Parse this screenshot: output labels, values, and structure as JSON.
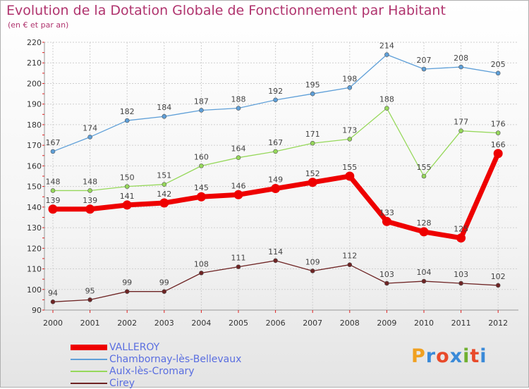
{
  "title": "Evolution de la Dotation Globale de Fonctionnement par Habitant",
  "subtitle": "(en € et par an)",
  "logo": {
    "letters": [
      "P",
      "r",
      "o",
      "x",
      "i",
      "t",
      "i"
    ],
    "colors": [
      "#f0a020",
      "#3a8ad8",
      "#e84a2a",
      "#3a8ad8",
      "#70b030",
      "#e84a2a",
      "#3a8ad8"
    ]
  },
  "chart_data": {
    "type": "line",
    "title": "Evolution de la Dotation Globale de Fonctionnement par Habitant",
    "subtitle": "(en € et par an)",
    "x": [
      "2000",
      "2001",
      "2002",
      "2003",
      "2004",
      "2005",
      "2006",
      "2007",
      "2008",
      "2009",
      "2010",
      "2011",
      "2012"
    ],
    "ylim": [
      90,
      220
    ],
    "yticks": [
      90,
      100,
      110,
      120,
      130,
      140,
      150,
      160,
      170,
      180,
      190,
      200,
      210,
      220
    ],
    "grid": true,
    "legend_position": "bottom-left",
    "series": [
      {
        "name": "VALLEROY",
        "color": "#ee0000",
        "values": [
          139,
          139,
          141,
          142,
          145,
          146,
          149,
          152,
          155,
          133,
          128,
          125,
          166
        ],
        "labels": [
          "139",
          "139",
          "141",
          "142",
          "145",
          "146",
          "149",
          "152",
          "155",
          "133",
          "128",
          "125",
          "166"
        ],
        "bold": true
      },
      {
        "name": "Chambornay-lès-Bellevaux",
        "color": "#5e9fd8",
        "values": [
          167,
          174,
          182,
          184,
          187,
          188,
          192,
          195,
          198,
          214,
          207,
          208,
          205
        ],
        "labels": [
          "167",
          "174",
          "182",
          "184",
          "187",
          "188",
          "192",
          "195",
          "198",
          "214",
          "207",
          "208",
          "205"
        ],
        "bold": false
      },
      {
        "name": "Aulx-lès-Cromary",
        "color": "#96d85a",
        "values": [
          148,
          148,
          150,
          151,
          160,
          164,
          167,
          171,
          173,
          188,
          155,
          177,
          176
        ],
        "labels": [
          "148",
          "148",
          "150",
          "151",
          "160",
          "164",
          "167",
          "171",
          "173",
          "188",
          "155",
          "177",
          "176"
        ],
        "bold": false
      },
      {
        "name": "Cirey",
        "color": "#6e2424",
        "values": [
          94,
          95,
          99,
          99,
          108,
          111,
          114,
          109,
          112,
          103,
          104,
          103,
          102
        ],
        "labels": [
          "94",
          "95",
          "99",
          "99",
          "108",
          "111",
          "114",
          "109",
          "112",
          "103",
          "104",
          "103",
          "102"
        ],
        "bold": false
      }
    ]
  }
}
